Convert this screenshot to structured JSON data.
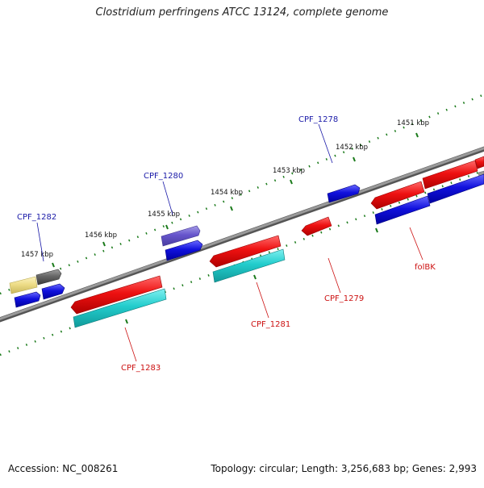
{
  "title": "Clostridium perfringens ATCC 13124, complete genome",
  "footer": {
    "accession": "Accession: NC_008261",
    "summary": "Topology: circular; Length: 3,256,683 bp; Genes: 2,993"
  },
  "scale_labels": [
    "1451 kbp",
    "1452 kbp",
    "1453 kbp",
    "1454 kbp",
    "1455 kbp",
    "1456 kbp",
    "1457 kbp"
  ],
  "gene_labels": {
    "forward": [
      "CPF_1278",
      "CPF_1280",
      "CPF_1282"
    ],
    "reverse": [
      "CPF_1279",
      "CPF_1281",
      "CPF_1283",
      "folBK"
    ]
  },
  "colors": {
    "backbone": "#8a8a8a",
    "tick": "#1a7a1a",
    "forward_label": "#1a1aa8",
    "reverse_label": "#cc1111",
    "red_feature": "#ee1111",
    "cyan_feature": "#22cccc",
    "blue_feature": "#1111dd",
    "purple_feature": "#6655cc",
    "yellow_feature": "#eedd88",
    "gray_feature": "#666666"
  }
}
